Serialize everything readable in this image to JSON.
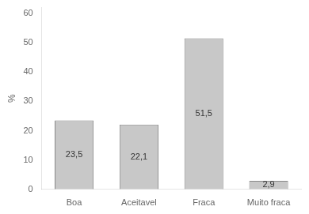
{
  "chart_data": {
    "type": "bar",
    "ylabel": "%",
    "categories": [
      "Boa",
      "Aceitavel",
      "Fraca",
      "Muito fraca"
    ],
    "values": [
      23.5,
      22.1,
      51.5,
      2.9
    ],
    "value_labels": [
      "23,5",
      "22,1",
      "51,5",
      "2,9"
    ],
    "data_labels": true,
    "color": "#c8c8c8",
    "ylim": [
      0,
      62
    ],
    "yticks": [
      0,
      10,
      20,
      30,
      40,
      50,
      60
    ],
    "grid": false
  }
}
